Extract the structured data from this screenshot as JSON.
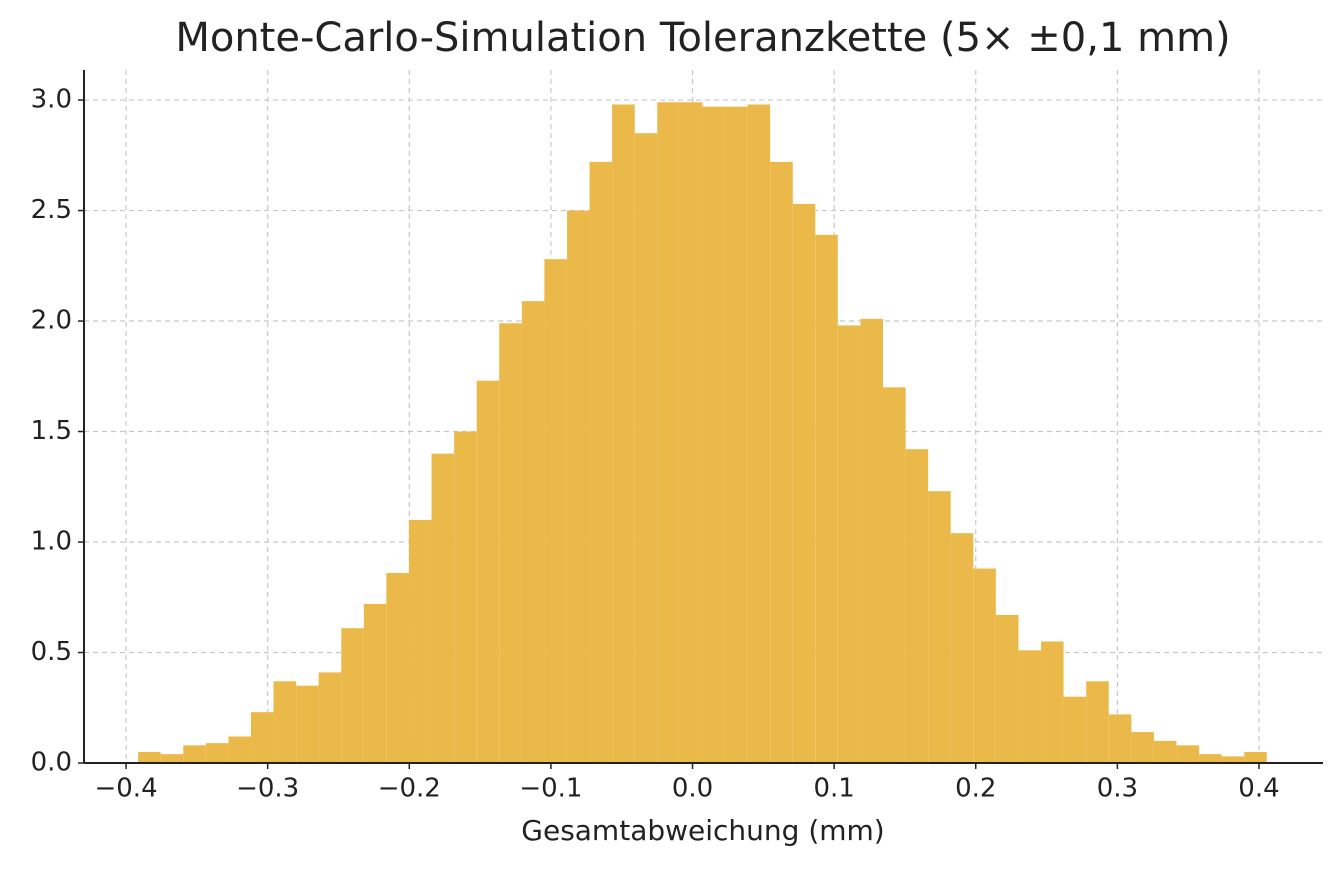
{
  "chart_data": {
    "type": "histogram",
    "title": "Monte-Carlo-Simulation Toleranzkette (5× ±0,1 mm)",
    "xlabel": "Gesamtabweichung (mm)",
    "color": "#ebb94a",
    "grid": true,
    "bins": [
      -0.3915,
      -0.3756,
      -0.3596,
      -0.3437,
      -0.3277,
      -0.3118,
      -0.2959,
      -0.2799,
      -0.264,
      -0.248,
      -0.2321,
      -0.2162,
      -0.2002,
      -0.1843,
      -0.1683,
      -0.1524,
      -0.1365,
      -0.1205,
      -0.1046,
      -0.0886,
      -0.0727,
      -0.0568,
      -0.0408,
      -0.0249,
      -0.0089,
      0.007,
      0.0229,
      0.0389,
      0.0548,
      0.0708,
      0.0867,
      0.1026,
      0.1186,
      0.1345,
      0.1505,
      0.1664,
      0.1823,
      0.1983,
      0.2142,
      0.2302,
      0.2461,
      0.262,
      0.278,
      0.2939,
      0.3099,
      0.3258,
      0.3417,
      0.3577,
      0.3736,
      0.3896,
      0.4055
    ],
    "values": [
      0.05,
      0.04,
      0.08,
      0.09,
      0.12,
      0.23,
      0.37,
      0.35,
      0.41,
      0.61,
      0.72,
      0.86,
      1.1,
      1.4,
      1.5,
      1.73,
      1.99,
      2.09,
      2.28,
      2.5,
      2.72,
      2.98,
      2.85,
      2.99,
      2.99,
      2.97,
      2.97,
      2.98,
      2.72,
      2.53,
      2.39,
      1.98,
      2.01,
      1.7,
      1.42,
      1.23,
      1.04,
      0.88,
      0.67,
      0.51,
      0.55,
      0.3,
      0.37,
      0.22,
      0.14,
      0.1,
      0.08,
      0.04,
      0.03,
      0.05
    ],
    "xlim": [
      -0.4297,
      0.4452
    ],
    "ylim": [
      0,
      3.136
    ],
    "xticks": [
      {
        "value": -0.4,
        "label": "−0.4"
      },
      {
        "value": -0.3,
        "label": "−0.3"
      },
      {
        "value": -0.2,
        "label": "−0.2"
      },
      {
        "value": -0.1,
        "label": "−0.1"
      },
      {
        "value": 0,
        "label": "0.0"
      },
      {
        "value": 0.1,
        "label": "0.1"
      },
      {
        "value": 0.2,
        "label": "0.2"
      },
      {
        "value": 0.3,
        "label": "0.3"
      },
      {
        "value": 0.4,
        "label": "0.4"
      }
    ],
    "yticks": [
      {
        "value": 0,
        "label": "0.0"
      },
      {
        "value": 0.5,
        "label": "0.5"
      },
      {
        "value": 1,
        "label": "1.0"
      },
      {
        "value": 1.5,
        "label": "1.5"
      },
      {
        "value": 2,
        "label": "2.0"
      },
      {
        "value": 2.5,
        "label": "2.5"
      },
      {
        "value": 3,
        "label": "3.0"
      }
    ]
  }
}
